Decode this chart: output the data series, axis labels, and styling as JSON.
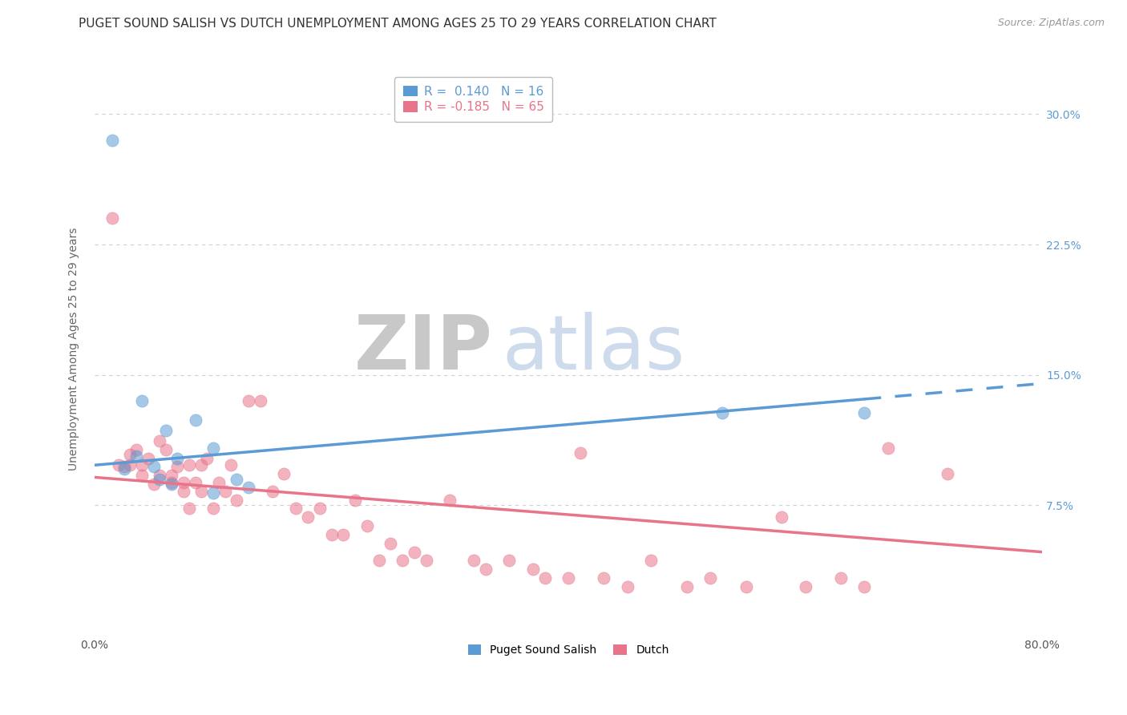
{
  "title": "PUGET SOUND SALISH VS DUTCH UNEMPLOYMENT AMONG AGES 25 TO 29 YEARS CORRELATION CHART",
  "source": "Source: ZipAtlas.com",
  "ylabel": "Unemployment Among Ages 25 to 29 years",
  "xlim": [
    0.0,
    0.8
  ],
  "ylim": [
    0.0,
    0.33
  ],
  "xticks": [
    0.0,
    0.1,
    0.2,
    0.3,
    0.4,
    0.5,
    0.6,
    0.7,
    0.8
  ],
  "xticklabels": [
    "0.0%",
    "",
    "",
    "",
    "",
    "",
    "",
    "",
    "80.0%"
  ],
  "yticks": [
    0.0,
    0.075,
    0.15,
    0.225,
    0.3
  ],
  "yticklabels_right": [
    "",
    "7.5%",
    "15.0%",
    "22.5%",
    "30.0%"
  ],
  "blue_color": "#5b9bd5",
  "pink_color": "#e8748a",
  "blue_r": "0.140",
  "blue_n": "16",
  "pink_r": "-0.185",
  "pink_n": "65",
  "blue_scatter_x": [
    0.015,
    0.04,
    0.025,
    0.035,
    0.05,
    0.055,
    0.06,
    0.065,
    0.07,
    0.085,
    0.1,
    0.12,
    0.13,
    0.53,
    0.65,
    0.1
  ],
  "blue_scatter_y": [
    0.285,
    0.135,
    0.096,
    0.103,
    0.097,
    0.09,
    0.118,
    0.087,
    0.102,
    0.124,
    0.082,
    0.09,
    0.085,
    0.128,
    0.128,
    0.108
  ],
  "pink_scatter_x": [
    0.015,
    0.02,
    0.025,
    0.03,
    0.03,
    0.035,
    0.04,
    0.04,
    0.045,
    0.05,
    0.055,
    0.055,
    0.06,
    0.065,
    0.065,
    0.07,
    0.075,
    0.075,
    0.08,
    0.08,
    0.085,
    0.09,
    0.09,
    0.095,
    0.1,
    0.105,
    0.11,
    0.115,
    0.12,
    0.13,
    0.14,
    0.15,
    0.16,
    0.17,
    0.18,
    0.19,
    0.2,
    0.21,
    0.22,
    0.23,
    0.24,
    0.25,
    0.26,
    0.27,
    0.28,
    0.3,
    0.32,
    0.33,
    0.35,
    0.37,
    0.38,
    0.4,
    0.41,
    0.43,
    0.45,
    0.47,
    0.5,
    0.52,
    0.55,
    0.58,
    0.6,
    0.63,
    0.65,
    0.67,
    0.72
  ],
  "pink_scatter_y": [
    0.24,
    0.098,
    0.097,
    0.098,
    0.104,
    0.107,
    0.098,
    0.092,
    0.102,
    0.087,
    0.112,
    0.092,
    0.107,
    0.092,
    0.088,
    0.097,
    0.088,
    0.083,
    0.098,
    0.073,
    0.088,
    0.098,
    0.083,
    0.102,
    0.073,
    0.088,
    0.083,
    0.098,
    0.078,
    0.135,
    0.135,
    0.083,
    0.093,
    0.073,
    0.068,
    0.073,
    0.058,
    0.058,
    0.078,
    0.063,
    0.043,
    0.053,
    0.043,
    0.048,
    0.043,
    0.078,
    0.043,
    0.038,
    0.043,
    0.038,
    0.033,
    0.033,
    0.105,
    0.033,
    0.028,
    0.043,
    0.028,
    0.033,
    0.028,
    0.068,
    0.028,
    0.033,
    0.028,
    0.108,
    0.093
  ],
  "blue_line_x0": 0.0,
  "blue_line_x1": 0.65,
  "blue_line_x2": 0.8,
  "blue_line_y0": 0.098,
  "blue_line_y1": 0.136,
  "blue_line_y2": 0.145,
  "pink_line_x0": 0.0,
  "pink_line_x1": 0.8,
  "pink_line_y0": 0.091,
  "pink_line_y1": 0.048,
  "watermark_zip": "ZIP",
  "watermark_atlas": "atlas",
  "background_color": "#ffffff",
  "grid_color": "#d0d0d0",
  "title_fontsize": 11,
  "axis_label_fontsize": 10,
  "tick_fontsize": 10,
  "legend_fontsize": 11
}
